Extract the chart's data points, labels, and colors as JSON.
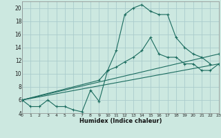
{
  "xlabel": "Humidex (Indice chaleur)",
  "background_color": "#cce8e0",
  "grid_color": "#aacccc",
  "line_color": "#1a6b5e",
  "xlim": [
    0,
    23
  ],
  "ylim": [
    4,
    21
  ],
  "yticks": [
    4,
    6,
    8,
    10,
    12,
    14,
    16,
    18,
    20
  ],
  "xticks": [
    0,
    1,
    2,
    3,
    4,
    5,
    6,
    7,
    8,
    9,
    10,
    11,
    12,
    13,
    14,
    15,
    16,
    17,
    18,
    19,
    20,
    21,
    22,
    23
  ],
  "line1_x": [
    0,
    1,
    2,
    3,
    4,
    5,
    6,
    7,
    8,
    9,
    10,
    11,
    12,
    13,
    14,
    15,
    16,
    17,
    18,
    19,
    20,
    21,
    22
  ],
  "line1_y": [
    6.0,
    5.0,
    5.0,
    6.0,
    5.0,
    5.0,
    4.5,
    4.2,
    7.5,
    5.8,
    10.5,
    13.5,
    19.0,
    20.0,
    20.5,
    19.5,
    19.0,
    19.0,
    15.5,
    14.0,
    13.0,
    12.5,
    11.5
  ],
  "line2_x": [
    0,
    9,
    10,
    11,
    12,
    13,
    14,
    15,
    16,
    17,
    18,
    19,
    20,
    21,
    22,
    23
  ],
  "line2_y": [
    6.0,
    9.0,
    10.5,
    11.0,
    11.8,
    12.5,
    13.5,
    15.5,
    13.0,
    12.5,
    12.5,
    11.5,
    11.5,
    10.5,
    10.5,
    11.5
  ],
  "line3_x": [
    0,
    23
  ],
  "line3_y": [
    6.0,
    11.5
  ],
  "line4_x": [
    0,
    23
  ],
  "line4_y": [
    6.0,
    13.0
  ]
}
